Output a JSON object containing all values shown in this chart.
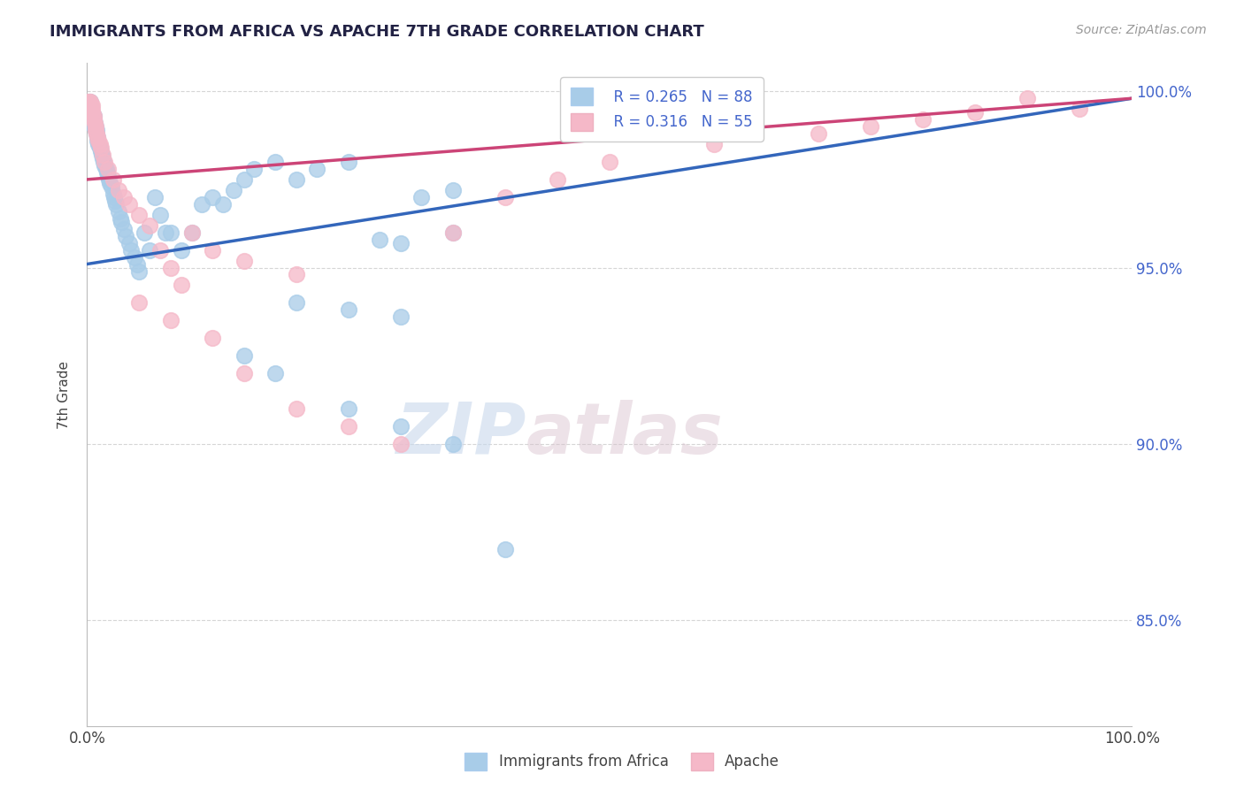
{
  "title": "IMMIGRANTS FROM AFRICA VS APACHE 7TH GRADE CORRELATION CHART",
  "source": "Source: ZipAtlas.com",
  "ylabel": "7th Grade",
  "watermark_zip": "ZIP",
  "watermark_atlas": "atlas",
  "xlim": [
    0.0,
    1.0
  ],
  "ylim": [
    0.82,
    1.008
  ],
  "x_tick_labels": [
    "0.0%",
    "100.0%"
  ],
  "y_tick_vals": [
    0.85,
    0.9,
    0.95,
    1.0
  ],
  "y_tick_labels": [
    "85.0%",
    "90.0%",
    "95.0%",
    "100.0%"
  ],
  "legend_blue_label": "Immigrants from Africa",
  "legend_pink_label": "Apache",
  "legend_blue_R": "R = 0.265",
  "legend_blue_N": "N = 88",
  "legend_pink_R": "R = 0.316",
  "legend_pink_N": "N = 55",
  "blue_color": "#a8cce8",
  "pink_color": "#f5b8c8",
  "trendline_blue_color": "#3366bb",
  "trendline_pink_color": "#cc4477",
  "blue_scatter_x": [
    0.002,
    0.002,
    0.002,
    0.003,
    0.003,
    0.003,
    0.003,
    0.003,
    0.003,
    0.003,
    0.004,
    0.004,
    0.004,
    0.004,
    0.005,
    0.005,
    0.005,
    0.005,
    0.006,
    0.006,
    0.006,
    0.007,
    0.007,
    0.008,
    0.008,
    0.009,
    0.009,
    0.01,
    0.01,
    0.011,
    0.012,
    0.013,
    0.014,
    0.015,
    0.016,
    0.017,
    0.018,
    0.019,
    0.02,
    0.021,
    0.022,
    0.023,
    0.025,
    0.026,
    0.027,
    0.028,
    0.03,
    0.032,
    0.033,
    0.035,
    0.037,
    0.04,
    0.042,
    0.045,
    0.048,
    0.05,
    0.055,
    0.06,
    0.065,
    0.07,
    0.075,
    0.08,
    0.09,
    0.1,
    0.11,
    0.12,
    0.13,
    0.14,
    0.15,
    0.16,
    0.18,
    0.2,
    0.22,
    0.25,
    0.28,
    0.3,
    0.32,
    0.35,
    0.2,
    0.25,
    0.3,
    0.35,
    0.15,
    0.18,
    0.25,
    0.3,
    0.35,
    0.4
  ],
  "blue_scatter_y": [
    0.997,
    0.996,
    0.995,
    0.997,
    0.996,
    0.995,
    0.994,
    0.993,
    0.992,
    0.991,
    0.995,
    0.994,
    0.993,
    0.992,
    0.994,
    0.993,
    0.992,
    0.991,
    0.993,
    0.992,
    0.991,
    0.991,
    0.99,
    0.99,
    0.989,
    0.989,
    0.988,
    0.987,
    0.986,
    0.985,
    0.984,
    0.983,
    0.982,
    0.981,
    0.98,
    0.979,
    0.978,
    0.977,
    0.976,
    0.975,
    0.974,
    0.973,
    0.971,
    0.97,
    0.969,
    0.968,
    0.966,
    0.964,
    0.963,
    0.961,
    0.959,
    0.957,
    0.955,
    0.953,
    0.951,
    0.949,
    0.96,
    0.955,
    0.97,
    0.965,
    0.96,
    0.96,
    0.955,
    0.96,
    0.968,
    0.97,
    0.968,
    0.972,
    0.975,
    0.978,
    0.98,
    0.975,
    0.978,
    0.98,
    0.958,
    0.957,
    0.97,
    0.972,
    0.94,
    0.938,
    0.936,
    0.96,
    0.925,
    0.92,
    0.91,
    0.905,
    0.9,
    0.87
  ],
  "pink_scatter_x": [
    0.001,
    0.002,
    0.002,
    0.003,
    0.003,
    0.003,
    0.004,
    0.004,
    0.005,
    0.005,
    0.005,
    0.006,
    0.006,
    0.007,
    0.008,
    0.008,
    0.009,
    0.01,
    0.011,
    0.012,
    0.013,
    0.015,
    0.017,
    0.02,
    0.025,
    0.03,
    0.035,
    0.04,
    0.05,
    0.06,
    0.07,
    0.08,
    0.09,
    0.1,
    0.12,
    0.15,
    0.2,
    0.05,
    0.08,
    0.12,
    0.15,
    0.2,
    0.25,
    0.3,
    0.35,
    0.4,
    0.45,
    0.5,
    0.6,
    0.7,
    0.75,
    0.8,
    0.85,
    0.9,
    0.95
  ],
  "pink_scatter_y": [
    0.997,
    0.997,
    0.996,
    0.997,
    0.996,
    0.995,
    0.996,
    0.995,
    0.996,
    0.995,
    0.994,
    0.993,
    0.992,
    0.991,
    0.99,
    0.989,
    0.988,
    0.987,
    0.986,
    0.985,
    0.984,
    0.982,
    0.98,
    0.978,
    0.975,
    0.972,
    0.97,
    0.968,
    0.965,
    0.962,
    0.955,
    0.95,
    0.945,
    0.96,
    0.955,
    0.952,
    0.948,
    0.94,
    0.935,
    0.93,
    0.92,
    0.91,
    0.905,
    0.9,
    0.96,
    0.97,
    0.975,
    0.98,
    0.985,
    0.988,
    0.99,
    0.992,
    0.994,
    0.998,
    0.995
  ],
  "trendline_blue_y_start": 0.951,
  "trendline_blue_y_end": 0.998,
  "trendline_pink_y_start": 0.975,
  "trendline_pink_y_end": 0.998,
  "grid_color": "#cccccc",
  "background_color": "#ffffff",
  "title_color": "#222244",
  "axis_label_color": "#444444",
  "tick_color_y": "#4466cc",
  "tick_color_x": "#444444"
}
